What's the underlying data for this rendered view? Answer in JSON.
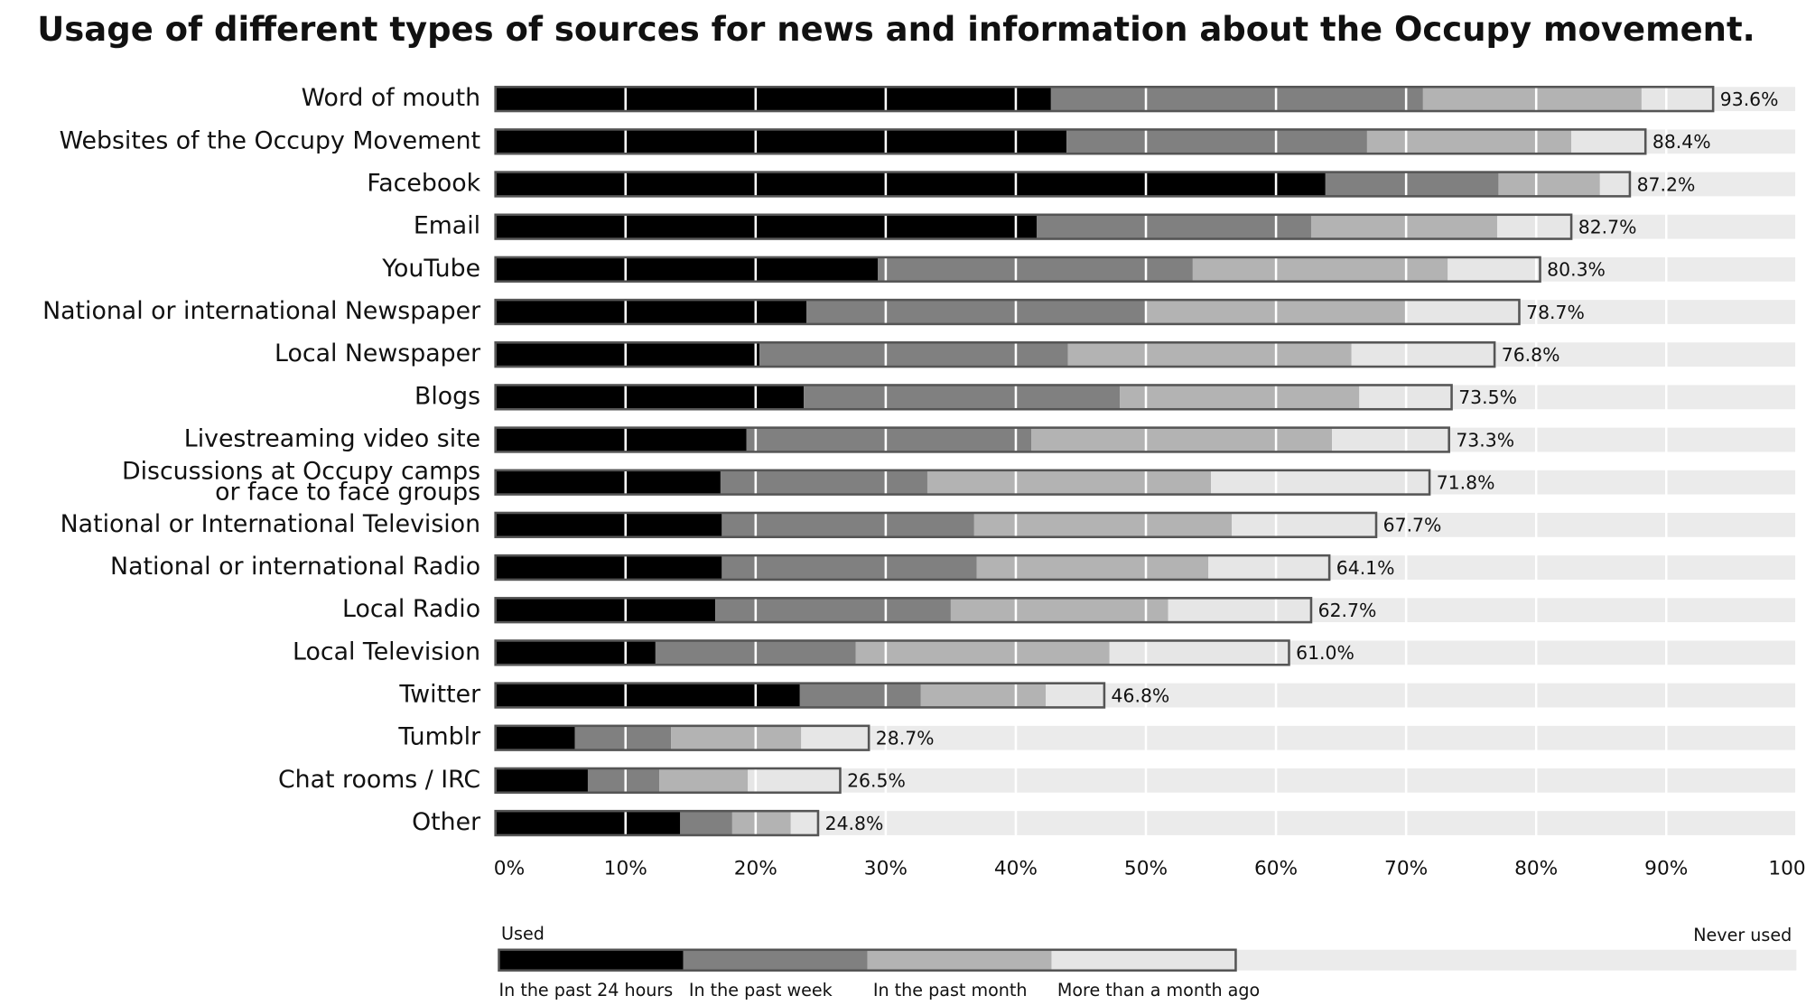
{
  "chart_data": {
    "type": "stacked_barh",
    "title": "Usage of different types of sources for news and information about the Occupy movement.",
    "categories": [
      "Word of mouth",
      "Websites of the Occupy Movement",
      "Facebook",
      "Email",
      "YouTube",
      "National or international Newspaper",
      "Local Newspaper",
      "Blogs",
      "Livestreaming video site",
      "Discussions at Occupy camps\nor face to face groups",
      "National or International Television",
      "National or international Radio",
      "Local Radio",
      "Local Television",
      "Twitter",
      "Tumblr",
      "Chat rooms / IRC",
      "Other"
    ],
    "series": [
      {
        "name": "In the past 24 hours",
        "color": "#000000",
        "values": [
          42.7,
          43.9,
          63.8,
          41.6,
          29.4,
          23.9,
          20.3,
          23.7,
          19.3,
          17.3,
          17.4,
          17.4,
          16.9,
          12.3,
          23.4,
          6.1,
          7.1,
          14.2
        ]
      },
      {
        "name": "In the past week",
        "color": "#808080",
        "values": [
          28.6,
          23.1,
          13.3,
          21.1,
          24.2,
          26.2,
          23.7,
          24.3,
          21.9,
          15.9,
          19.4,
          19.6,
          18.1,
          15.4,
          9.3,
          7.4,
          5.5,
          4.0
        ]
      },
      {
        "name": "In the past month",
        "color": "#b3b3b3",
        "values": [
          16.8,
          15.7,
          7.8,
          14.3,
          19.6,
          19.9,
          21.8,
          18.4,
          23.1,
          21.8,
          19.8,
          17.8,
          16.7,
          19.5,
          9.6,
          10.0,
          6.8,
          4.5
        ]
      },
      {
        "name": "More than a month ago",
        "color": "#e6e6e6",
        "values": [
          5.5,
          5.7,
          2.3,
          5.7,
          7.1,
          8.7,
          11.0,
          7.1,
          9.0,
          16.8,
          11.1,
          9.3,
          11.0,
          13.8,
          4.5,
          5.2,
          7.1,
          2.1
        ]
      }
    ],
    "totals": {
      "values": [
        93.6,
        88.4,
        87.2,
        82.7,
        80.3,
        78.7,
        76.8,
        73.5,
        73.3,
        71.8,
        67.7,
        64.1,
        62.7,
        61.0,
        46.8,
        28.7,
        26.5,
        24.8
      ],
      "value_labels": [
        "93.6%",
        "88.4%",
        "87.2%",
        "82.7%",
        "80.3%",
        "78.7%",
        "76.8%",
        "73.5%",
        "73.3%",
        "71.8%",
        "67.7%",
        "64.1%",
        "62.7%",
        "61.0%",
        "46.8%",
        "28.7%",
        "26.5%",
        "24.8%"
      ]
    },
    "xlim": [
      0,
      100
    ],
    "xticks": [
      {
        "value": 0,
        "label": "0%"
      },
      {
        "value": 10,
        "label": "10%"
      },
      {
        "value": 20,
        "label": "20%"
      },
      {
        "value": 30,
        "label": "30%"
      },
      {
        "value": 40,
        "label": "40%"
      },
      {
        "value": 50,
        "label": "50%"
      },
      {
        "value": 60,
        "label": "60%"
      },
      {
        "value": 70,
        "label": "70%"
      },
      {
        "value": 80,
        "label": "80%"
      },
      {
        "value": 90,
        "label": "90%"
      },
      {
        "value": 100,
        "label": "100%"
      }
    ],
    "grid": true,
    "background_color": "#ebebeb",
    "legend": {
      "used_label": "Used",
      "never_used_label": "Never used"
    }
  }
}
